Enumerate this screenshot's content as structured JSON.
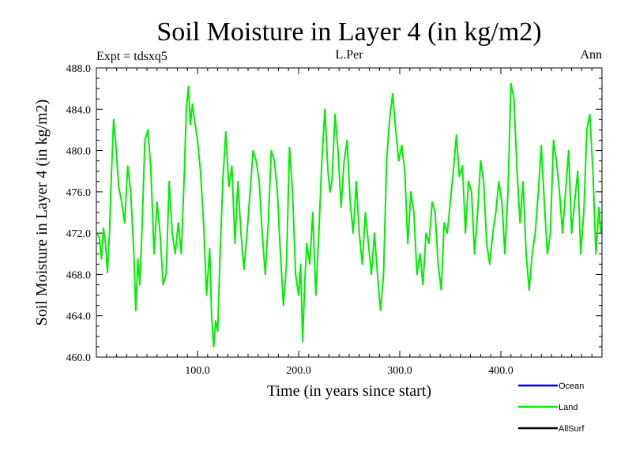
{
  "chart_data": {
    "type": "line",
    "title": "Soil Moisture in Layer 4 (in kg/m2)",
    "subtitle_left": "Expt = tdsxq5",
    "subtitle_center": "L.Per",
    "subtitle_right": "Ann",
    "xlabel": "Time (in years since start)",
    "ylabel": "Soil Moisture in Layer 4 (in kg/m2)",
    "xlim": [
      0,
      500
    ],
    "ylim": [
      460,
      488
    ],
    "x_ticks": [
      100,
      200,
      300,
      400
    ],
    "x_tick_labels": [
      "100.0",
      "200.0",
      "300.0",
      "400.0"
    ],
    "y_ticks": [
      460,
      464,
      468,
      472,
      476,
      480,
      484,
      488
    ],
    "y_tick_labels": [
      "460.0",
      "464.0",
      "468.0",
      "472.0",
      "476.0",
      "480.0",
      "484.0",
      "488.0"
    ],
    "legend": [
      {
        "name": "Ocean",
        "color": "#0000dd"
      },
      {
        "name": "Land",
        "color": "#00ee00"
      },
      {
        "name": "AllSurf",
        "color": "#000000"
      }
    ],
    "series": [
      {
        "name": "Land",
        "color": "#00ee00",
        "x": [
          1,
          3,
          5,
          7,
          9,
          11,
          13,
          15,
          17,
          19,
          22,
          25,
          28,
          31,
          34,
          37,
          39,
          41,
          43,
          45,
          48,
          51,
          54,
          57,
          60,
          63,
          66,
          69,
          72,
          75,
          78,
          81,
          84,
          87,
          89,
          91,
          93,
          95,
          97,
          100,
          103,
          106,
          109,
          112,
          114,
          116,
          118,
          120,
          122,
          125,
          128,
          131,
          134,
          137,
          140,
          143,
          146,
          149,
          152,
          155,
          158,
          161,
          164,
          167,
          170,
          173,
          176,
          179,
          182,
          185,
          188,
          191,
          194,
          197,
          200,
          202,
          204,
          206,
          208,
          211,
          214,
          217,
          220,
          223,
          226,
          229,
          231,
          233,
          236,
          239,
          242,
          245,
          248,
          251,
          254,
          257,
          260,
          263,
          266,
          269,
          272,
          275,
          278,
          281,
          284,
          287,
          290,
          293,
          296,
          299,
          302,
          305,
          308,
          311,
          314,
          317,
          320,
          323,
          326,
          329,
          332,
          335,
          338,
          341,
          344,
          347,
          350,
          353,
          356,
          359,
          362,
          365,
          368,
          371,
          374,
          377,
          380,
          383,
          386,
          389,
          392,
          395,
          398,
          401,
          404,
          407,
          410,
          413,
          416,
          419,
          422,
          425,
          428,
          431,
          434,
          437,
          440,
          443,
          446,
          449,
          452,
          455,
          458,
          461,
          464,
          467,
          470,
          473,
          476,
          479,
          482,
          485,
          488,
          491,
          494,
          497,
          499
        ],
        "values": [
          472.0,
          471.5,
          469.5,
          472.5,
          471.0,
          468.2,
          472.0,
          478.0,
          483.0,
          481.0,
          476.5,
          475.0,
          473.0,
          478.5,
          476.0,
          470.0,
          464.5,
          469.5,
          467.0,
          472.0,
          481.0,
          482.0,
          478.0,
          470.0,
          475.0,
          472.0,
          467.0,
          468.0,
          477.0,
          472.0,
          470.0,
          473.0,
          470.0,
          478.0,
          484.0,
          486.2,
          482.5,
          484.5,
          483.0,
          481.0,
          478.0,
          473.0,
          466.0,
          470.5,
          464.0,
          461.0,
          463.5,
          462.5,
          469.0,
          477.0,
          481.8,
          476.5,
          478.5,
          471.0,
          477.0,
          472.0,
          468.5,
          472.0,
          476.0,
          480.0,
          479.0,
          477.0,
          472.0,
          468.0,
          473.0,
          480.0,
          479.0,
          476.0,
          470.0,
          465.0,
          469.0,
          480.3,
          476.0,
          468.0,
          466.0,
          469.0,
          461.5,
          467.0,
          471.0,
          469.0,
          474.0,
          466.0,
          472.0,
          479.0,
          484.0,
          478.0,
          476.0,
          477.0,
          483.5,
          480.0,
          474.5,
          479.0,
          481.0,
          475.0,
          472.0,
          477.0,
          472.0,
          469.0,
          474.0,
          471.0,
          468.0,
          472.0,
          468.0,
          464.5,
          468.0,
          479.0,
          483.0,
          485.5,
          482.0,
          479.0,
          480.5,
          478.0,
          471.0,
          476.0,
          474.0,
          468.0,
          470.0,
          467.0,
          472.0,
          471.0,
          475.0,
          474.0,
          469.0,
          466.5,
          473.0,
          472.0,
          475.0,
          478.0,
          481.5,
          477.5,
          478.5,
          472.0,
          477.0,
          476.0,
          470.0,
          474.0,
          479.0,
          477.0,
          471.0,
          469.0,
          472.0,
          474.0,
          477.0,
          475.0,
          470.0,
          476.0,
          486.5,
          485.0,
          478.0,
          473.0,
          477.0,
          470.0,
          466.5,
          470.0,
          472.0,
          476.0,
          480.5,
          475.0,
          470.0,
          472.0,
          481.0,
          479.0,
          476.0,
          472.0,
          476.0,
          480.0,
          472.0,
          475.0,
          478.0,
          470.0,
          474.0,
          482.0,
          483.5,
          478.0,
          470.0,
          474.5,
          472.0
        ]
      }
    ]
  }
}
